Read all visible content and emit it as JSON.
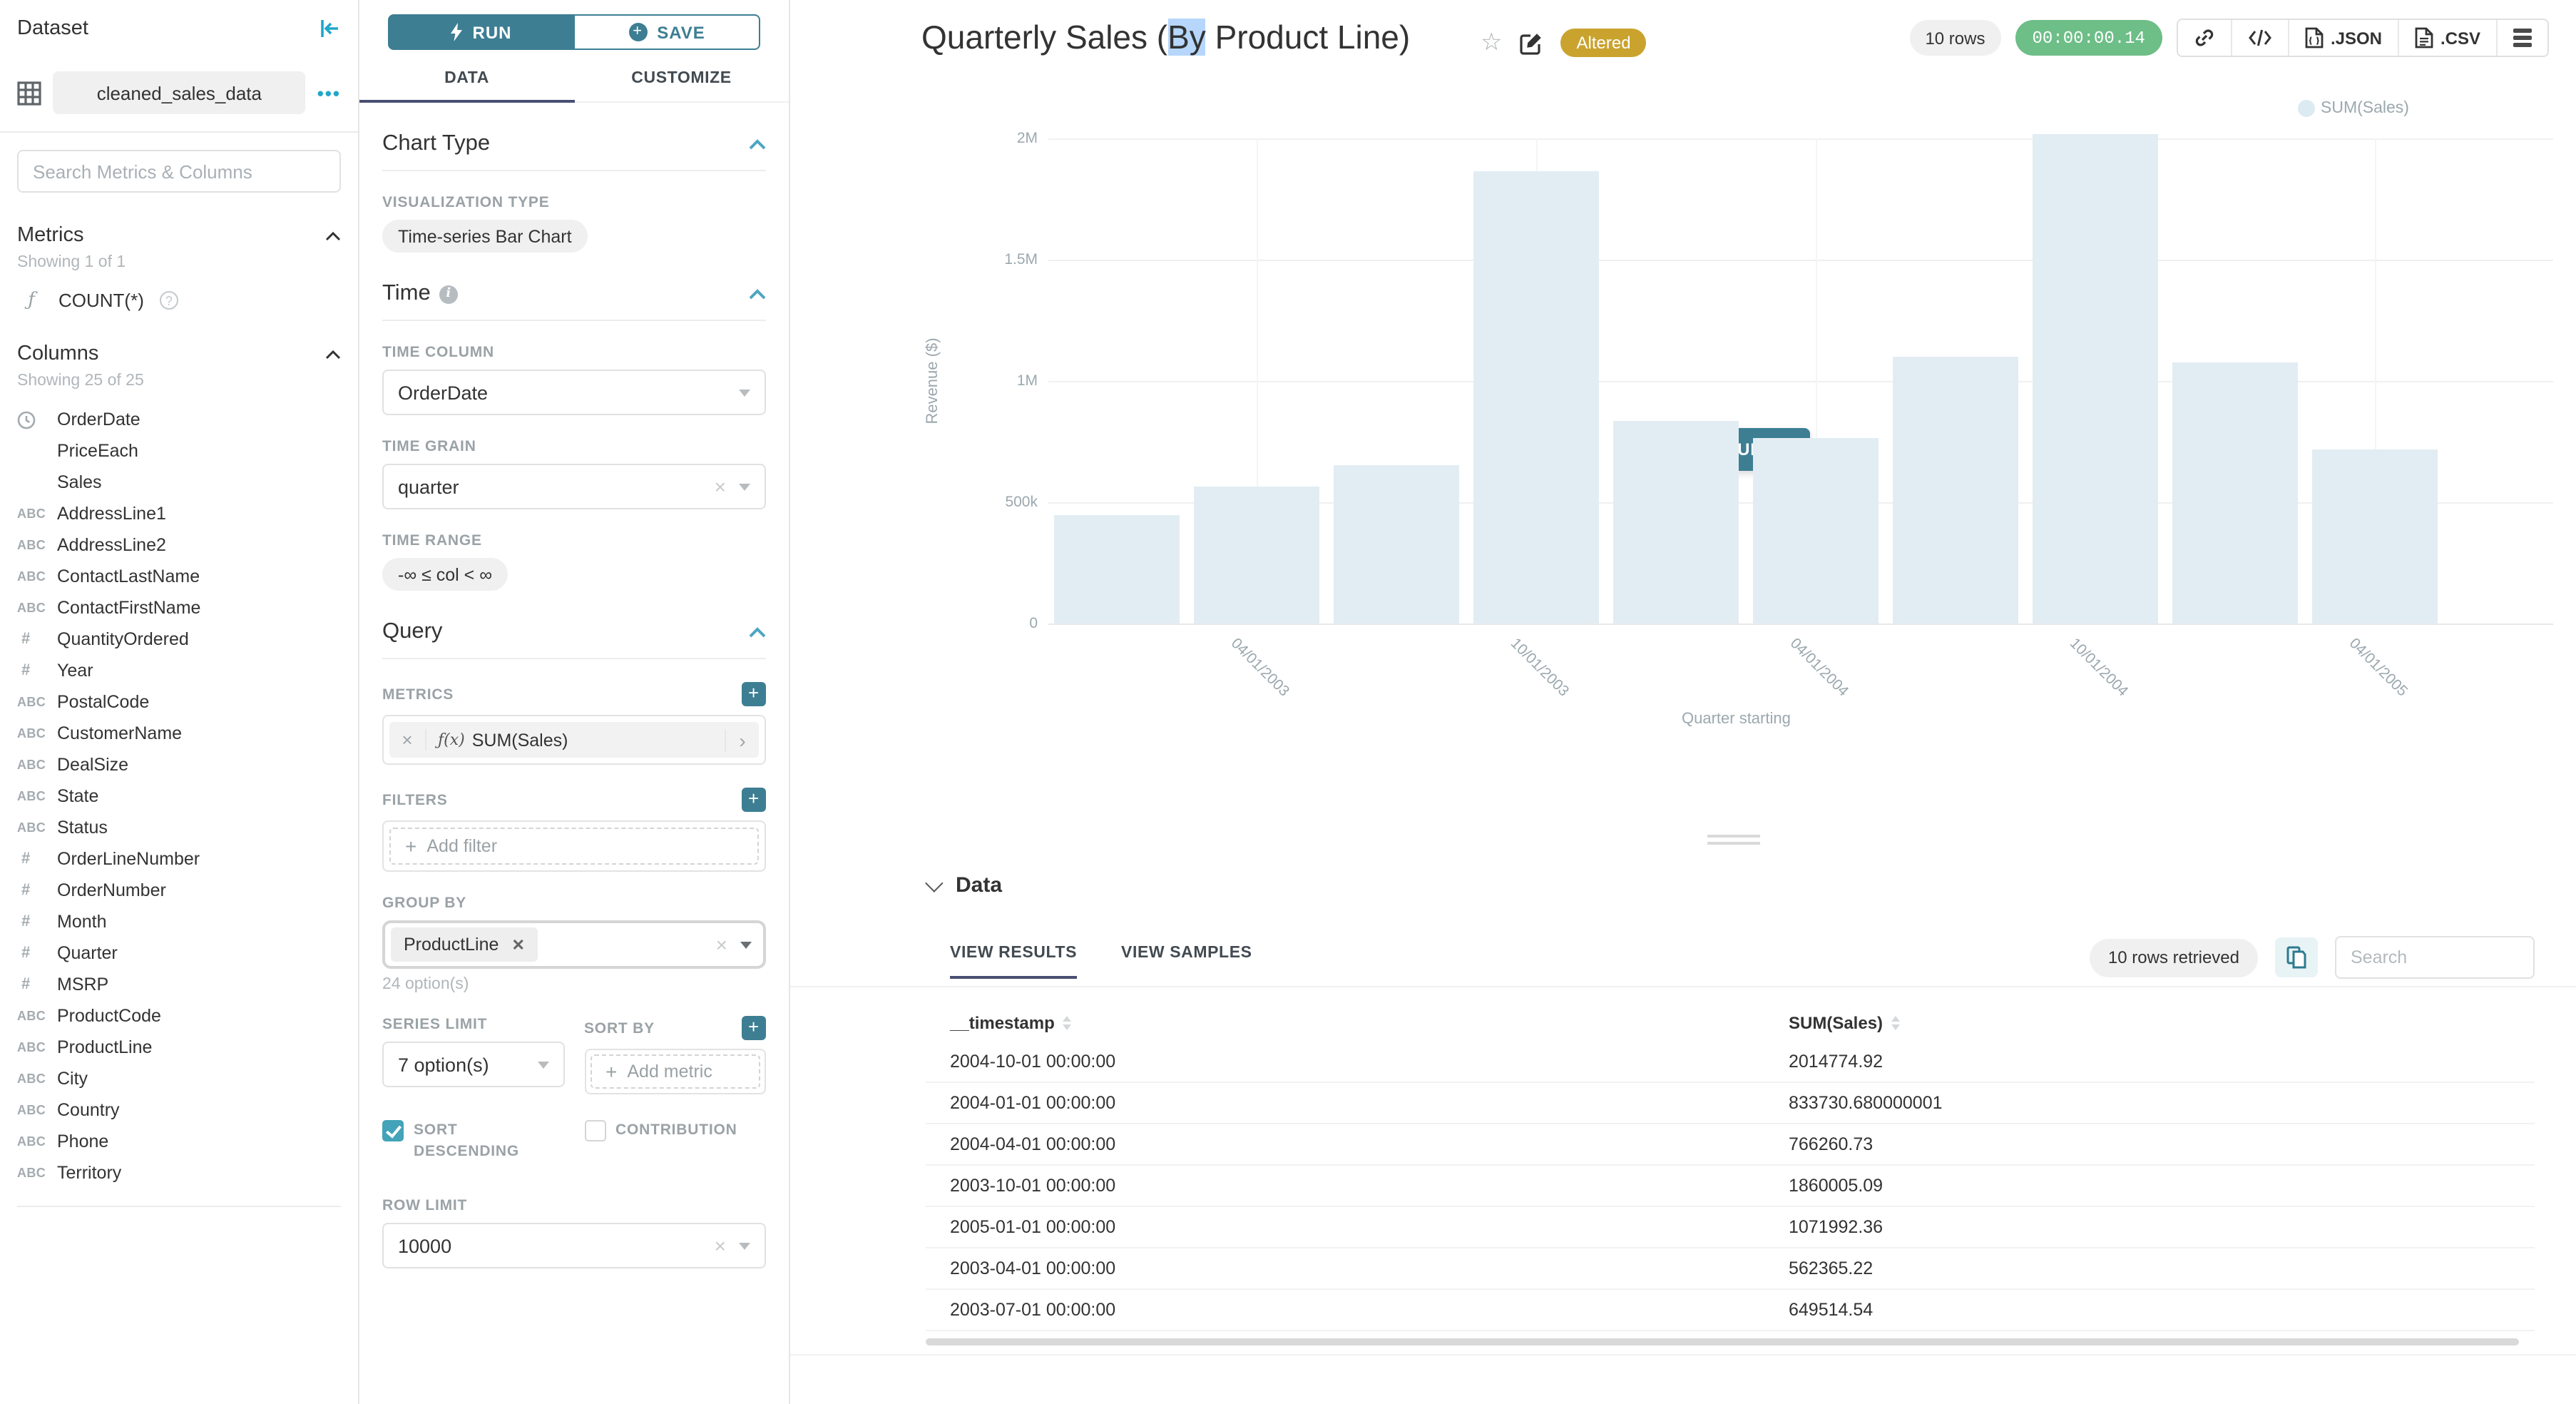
{
  "colors": {
    "accent_teal": "#3d7e93",
    "link_teal": "#20a7c9",
    "badge_gold": "#c9a32e",
    "timer_green": "#6dbe87",
    "bar_fill": "#e2edf3",
    "tab_indicator": "#494f72",
    "selection_blue": "#b6d7fb"
  },
  "sidebar": {
    "title": "Dataset",
    "dataset_name": "cleaned_sales_data",
    "menu_dots": "•••",
    "search_placeholder": "Search Metrics & Columns",
    "metrics": {
      "title": "Metrics",
      "showing": "Showing 1 of 1",
      "items": [
        {
          "icon": "function",
          "label": "COUNT(*)"
        }
      ]
    },
    "columns": {
      "title": "Columns",
      "showing": "Showing 25 of 25",
      "items": [
        {
          "type": "time",
          "label": "OrderDate"
        },
        {
          "type": "none",
          "label": "PriceEach"
        },
        {
          "type": "none",
          "label": "Sales"
        },
        {
          "type": "str",
          "label": "AddressLine1"
        },
        {
          "type": "str",
          "label": "AddressLine2"
        },
        {
          "type": "str",
          "label": "ContactLastName"
        },
        {
          "type": "str",
          "label": "ContactFirstName"
        },
        {
          "type": "num",
          "label": "QuantityOrdered"
        },
        {
          "type": "num",
          "label": "Year"
        },
        {
          "type": "str",
          "label": "PostalCode"
        },
        {
          "type": "str",
          "label": "CustomerName"
        },
        {
          "type": "str",
          "label": "DealSize"
        },
        {
          "type": "str",
          "label": "State"
        },
        {
          "type": "str",
          "label": "Status"
        },
        {
          "type": "num",
          "label": "OrderLineNumber"
        },
        {
          "type": "num",
          "label": "OrderNumber"
        },
        {
          "type": "num",
          "label": "Month"
        },
        {
          "type": "num",
          "label": "Quarter"
        },
        {
          "type": "num",
          "label": "MSRP"
        },
        {
          "type": "str",
          "label": "ProductCode"
        },
        {
          "type": "str",
          "label": "ProductLine"
        },
        {
          "type": "str",
          "label": "City"
        },
        {
          "type": "str",
          "label": "Country"
        },
        {
          "type": "str",
          "label": "Phone"
        },
        {
          "type": "str",
          "label": "Territory"
        }
      ]
    }
  },
  "control_panel": {
    "run_label": "RUN",
    "save_label": "SAVE",
    "tabs": {
      "data": "DATA",
      "customize": "CUSTOMIZE"
    },
    "active_tab": "DATA",
    "chart_type": {
      "heading": "Chart Type",
      "viz_type_label": "VISUALIZATION TYPE",
      "viz_type": "Time-series Bar Chart"
    },
    "time": {
      "heading": "Time",
      "time_column_label": "TIME COLUMN",
      "time_column": "OrderDate",
      "time_grain_label": "TIME GRAIN",
      "time_grain": "quarter",
      "time_range_label": "TIME RANGE",
      "time_range": "-∞ ≤ col < ∞"
    },
    "query": {
      "heading": "Query",
      "metrics_label": "METRICS",
      "metric_fx": "ƒ(x)",
      "metric": "SUM(Sales)",
      "filters_label": "FILTERS",
      "add_filter": "Add filter",
      "group_by_label": "GROUP BY",
      "group_by_chip": "ProductLine",
      "options_hint": "24 option(s)",
      "series_limit_label": "SERIES LIMIT",
      "series_limit": "7 option(s)",
      "sort_by_label": "SORT BY",
      "add_metric": "Add metric",
      "sort_descending_label": "SORT DESCENDING",
      "contribution_label": "CONTRIBUTION",
      "row_limit_label": "ROW LIMIT",
      "row_limit": "10000"
    }
  },
  "header": {
    "title_prefix": "Quarterly Sales (",
    "title_selected": "By",
    "title_suffix": " Product Line)",
    "badge": "Altered",
    "rows_pill": "10 rows",
    "timer": "00:00:00.14",
    "export_json": ".JSON",
    "export_csv": ".CSV"
  },
  "chart_ui": {
    "legend": "SUM(Sales)",
    "ylabel": "Revenue ($)",
    "xlabel": "Quarter starting",
    "run_query": "RUN QUERY"
  },
  "chart_data": {
    "type": "bar",
    "title": "Quarterly Sales (By Product Line)",
    "x": [
      "2003-01-01",
      "2003-04-01",
      "2003-07-01",
      "2003-10-01",
      "2004-01-01",
      "2004-04-01",
      "2004-07-01",
      "2004-10-01",
      "2005-01-01",
      "2005-04-01"
    ],
    "series": [
      {
        "name": "SUM(Sales)",
        "values": [
          445000,
          562365.22,
          649514.54,
          1860005.09,
          833730.68,
          766260.73,
          1100000,
          2014774.92,
          1071992.36,
          715000
        ]
      }
    ],
    "xlabel": "Quarter starting",
    "ylabel": "Revenue ($)",
    "ylim": [
      0,
      2000000
    ],
    "ytick_labels": [
      "0",
      "500k",
      "1M",
      "1.5M",
      "2M"
    ],
    "ytick_values": [
      0,
      500000,
      1000000,
      1500000,
      2000000
    ],
    "x_tick_indices": [
      1,
      3,
      5,
      7,
      9
    ],
    "x_tick_labels": [
      "04/01/2003",
      "10/01/2003",
      "04/01/2004",
      "10/01/2004",
      "04/01/2005"
    ],
    "legend_position": "top-right",
    "grid": true
  },
  "data_panel": {
    "heading": "Data",
    "tabs": {
      "results": "VIEW RESULTS",
      "samples": "VIEW SAMPLES"
    },
    "active_tab": "VIEW RESULTS",
    "rows_retrieved": "10 rows retrieved",
    "search_placeholder": "Search",
    "columns": [
      "__timestamp",
      "SUM(Sales)"
    ],
    "rows": [
      [
        "2004-10-01 00:00:00",
        "2014774.92"
      ],
      [
        "2004-01-01 00:00:00",
        "833730.680000001"
      ],
      [
        "2004-04-01 00:00:00",
        "766260.73"
      ],
      [
        "2003-10-01 00:00:00",
        "1860005.09"
      ],
      [
        "2005-01-01 00:00:00",
        "1071992.36"
      ],
      [
        "2003-04-01 00:00:00",
        "562365.22"
      ],
      [
        "2003-07-01 00:00:00",
        "649514.54"
      ]
    ]
  }
}
